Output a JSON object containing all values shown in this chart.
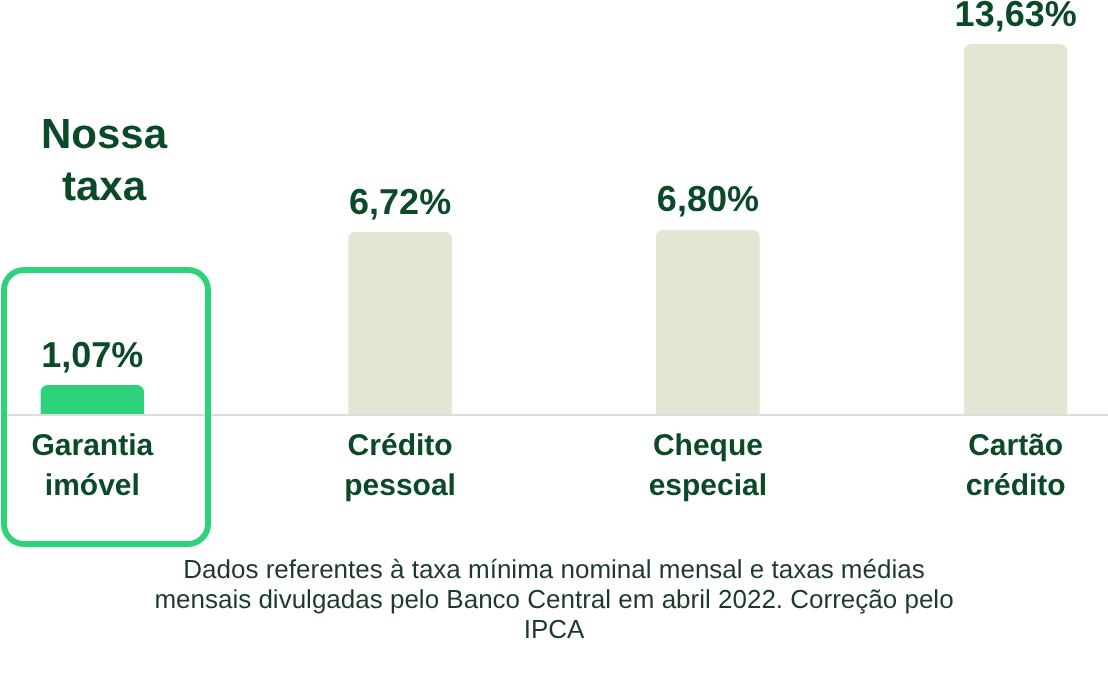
{
  "chart_data": {
    "type": "bar",
    "categories": [
      "Garantia imóvel",
      "Crédito pessoal",
      "Cheque especial",
      "Cartão crédito"
    ],
    "values": [
      1.07,
      6.72,
      6.8,
      13.63
    ],
    "colors": [
      "#2ed27a",
      "#e2e6d3",
      "#e2e6d3",
      "#e2e6d3"
    ],
    "value_labels": [
      "1,07%",
      "6,72%",
      "6,80%",
      "13,63%"
    ],
    "annotations": [
      "Nossa taxa",
      "Dados referentes à taxa mínima nominal mensal e taxas médias mensais divulgadas pelo Banco Central em abril 2022. Correção pelo IPCA"
    ]
  }
}
